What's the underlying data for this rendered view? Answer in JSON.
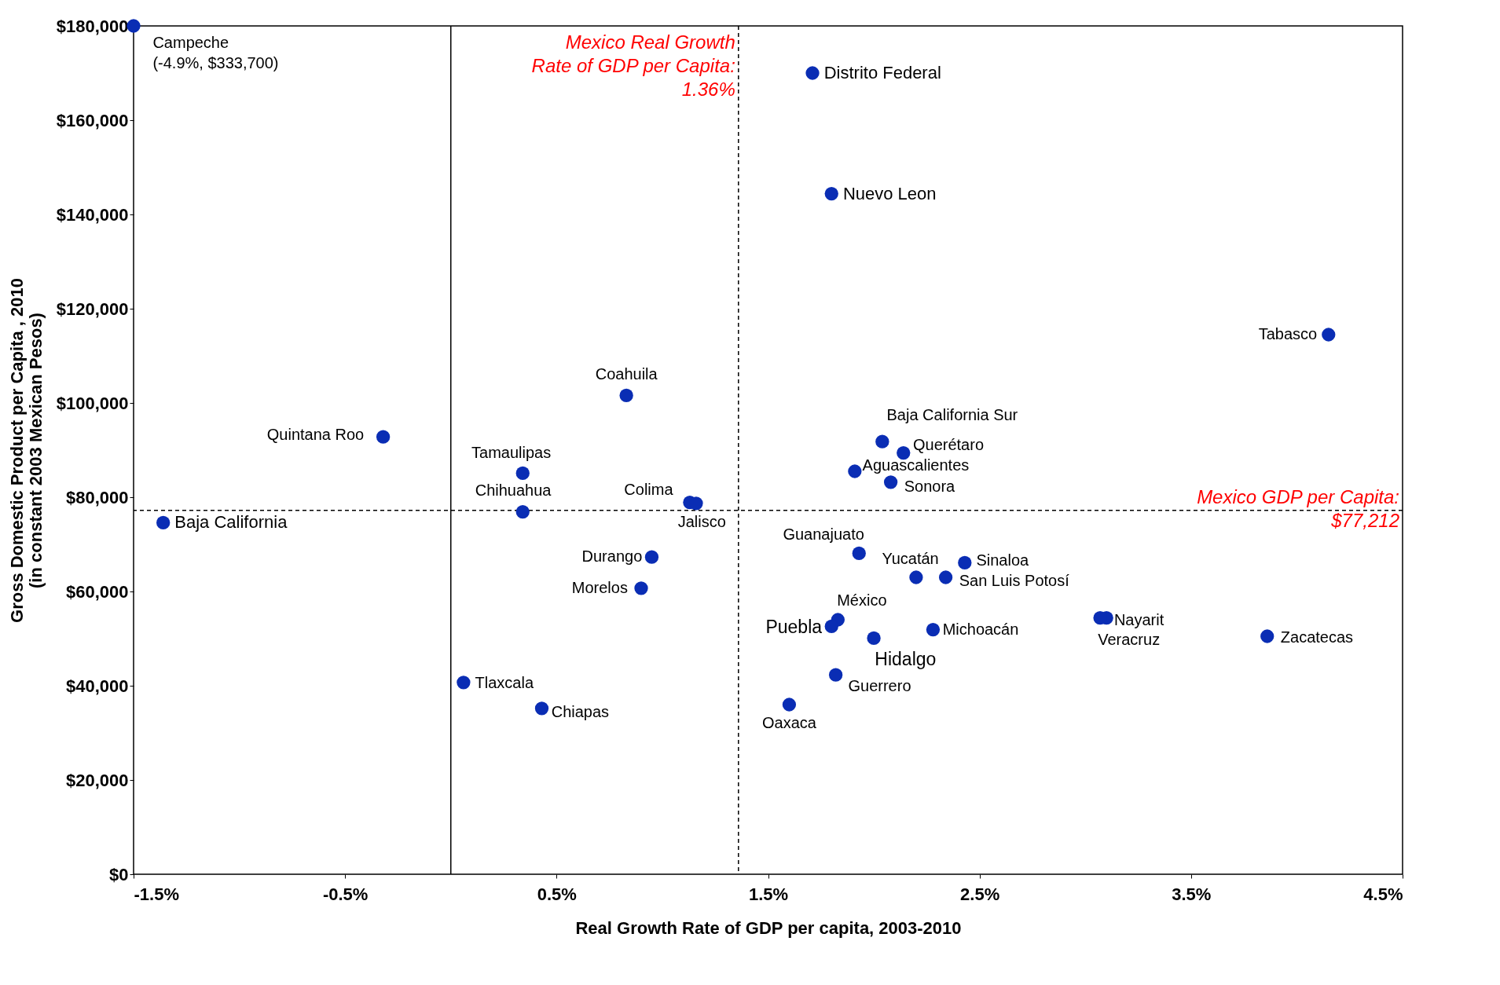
{
  "chart_data": {
    "type": "scatter",
    "xlabel": "Real Growth Rate of GDP per capita, 2003-2010",
    "ylabel": "Gross Domestic Product per Capita , 2010\n(in constant 2003 Mexican Pesos)",
    "xlim": [
      -1.5,
      4.5
    ],
    "xticks": [
      {
        "value": -1.5,
        "label": "-1.5%"
      },
      {
        "value": -0.5,
        "label": "-0.5%"
      },
      {
        "value": 0.5,
        "label": "0.5%"
      },
      {
        "value": 1.5,
        "label": "1.5%"
      },
      {
        "value": 2.5,
        "label": "2.5%"
      },
      {
        "value": 3.5,
        "label": "3.5%"
      },
      {
        "value": 4.5,
        "label": "4.5%"
      }
    ],
    "ylim": [
      0,
      180000
    ],
    "yticks": [
      {
        "value": 0,
        "label": "$0"
      },
      {
        "value": 20000,
        "label": "$20,000"
      },
      {
        "value": 40000,
        "label": "$40,000"
      },
      {
        "value": 60000,
        "label": "$60,000"
      },
      {
        "value": 80000,
        "label": "$80,000"
      },
      {
        "value": 100000,
        "label": "$100,000"
      },
      {
        "value": 120000,
        "label": "$120,000"
      },
      {
        "value": 140000,
        "label": "$140,000"
      },
      {
        "value": 160000,
        "label": "$160,000"
      },
      {
        "value": 180000,
        "label": "$180,000"
      }
    ],
    "grid": false,
    "marker": "circle",
    "series": [
      {
        "color": "#0a2db4",
        "x": [
          -1.5,
          1.71,
          1.8,
          4.15,
          0.83,
          -0.32,
          -1.36,
          0.34,
          0.34,
          1.13,
          1.16,
          0.95,
          0.9,
          0.06,
          0.43,
          2.04,
          2.14,
          1.91,
          2.08,
          1.93,
          2.2,
          2.43,
          2.34,
          1.83,
          1.8,
          2.0,
          2.28,
          3.1,
          3.07,
          3.86,
          1.82,
          1.6
        ],
        "values": [
          180000,
          170000,
          144400,
          114500,
          101600,
          92800,
          74600,
          85100,
          76900,
          78900,
          78700,
          67300,
          60700,
          40700,
          35200,
          91800,
          89400,
          85500,
          83200,
          68100,
          63000,
          66100,
          63000,
          54000,
          52600,
          50100,
          51900,
          54400,
          54400,
          50500,
          42300,
          36000
        ]
      }
    ],
    "ref_lines": [
      {
        "axis": "x",
        "value": 0,
        "line_style": "solid",
        "color": "#000000"
      },
      {
        "axis": "x",
        "value": 1.36,
        "label": "Mexico Real Growth\nRate of GDP per Capita:\n1.36%",
        "line_style": "dashed",
        "color": "#000000"
      },
      {
        "axis": "y",
        "value": 77212,
        "label": "Mexico GDP per Capita:\n$77,212",
        "line_style": "dashed",
        "color": "#000000"
      }
    ],
    "annotations": [
      {
        "text": "Campeche\n(-4.9%, $333,700)",
        "x": -1.5,
        "y": 180000
      },
      {
        "text": "Distrito Federal",
        "x": 1.71,
        "y": 170000
      },
      {
        "text": "Nuevo Leon",
        "x": 1.8,
        "y": 144400
      },
      {
        "text": "Tabasco",
        "x": 4.15,
        "y": 114500
      },
      {
        "text": "Coahuila",
        "x": 0.83,
        "y": 101600
      },
      {
        "text": "Quintana Roo",
        "x": -0.32,
        "y": 92800
      },
      {
        "text": "Baja California",
        "x": -1.36,
        "y": 74600
      },
      {
        "text": "Tamaulipas",
        "x": 0.34,
        "y": 85100
      },
      {
        "text": "Chihuahua",
        "x": 0.34,
        "y": 76900
      },
      {
        "text": "Colima",
        "x": 1.13,
        "y": 78900
      },
      {
        "text": "Jalisco",
        "x": 1.16,
        "y": 78700
      },
      {
        "text": "Durango",
        "x": 0.95,
        "y": 67300
      },
      {
        "text": "Morelos",
        "x": 0.9,
        "y": 60700
      },
      {
        "text": "Tlaxcala",
        "x": 0.06,
        "y": 40700
      },
      {
        "text": "Chiapas",
        "x": 0.43,
        "y": 35200
      },
      {
        "text": "Baja California Sur",
        "x": 2.04,
        "y": 91800
      },
      {
        "text": "Querétaro",
        "x": 2.14,
        "y": 89400
      },
      {
        "text": "Aguascalientes",
        "x": 1.91,
        "y": 85500
      },
      {
        "text": "Sonora",
        "x": 2.08,
        "y": 83200
      },
      {
        "text": "Guanajuato",
        "x": 1.93,
        "y": 68100
      },
      {
        "text": "Yucatán",
        "x": 2.2,
        "y": 63000
      },
      {
        "text": "Sinaloa",
        "x": 2.43,
        "y": 66100
      },
      {
        "text": "San Luis Potosí",
        "x": 2.34,
        "y": 63000
      },
      {
        "text": "México",
        "x": 1.83,
        "y": 54000
      },
      {
        "text": "Puebla",
        "x": 1.8,
        "y": 52600
      },
      {
        "text": "Hidalgo",
        "x": 2.0,
        "y": 50100
      },
      {
        "text": "Michoacán",
        "x": 2.28,
        "y": 51900
      },
      {
        "text": "Nayarit",
        "x": 3.1,
        "y": 54400
      },
      {
        "text": "Veracruz",
        "x": 3.07,
        "y": 54400
      },
      {
        "text": "Zacatecas",
        "x": 3.86,
        "y": 50500
      },
      {
        "text": "Guerrero",
        "x": 1.82,
        "y": 42300
      },
      {
        "text": "Oaxaca",
        "x": 1.6,
        "y": 36000
      }
    ]
  }
}
